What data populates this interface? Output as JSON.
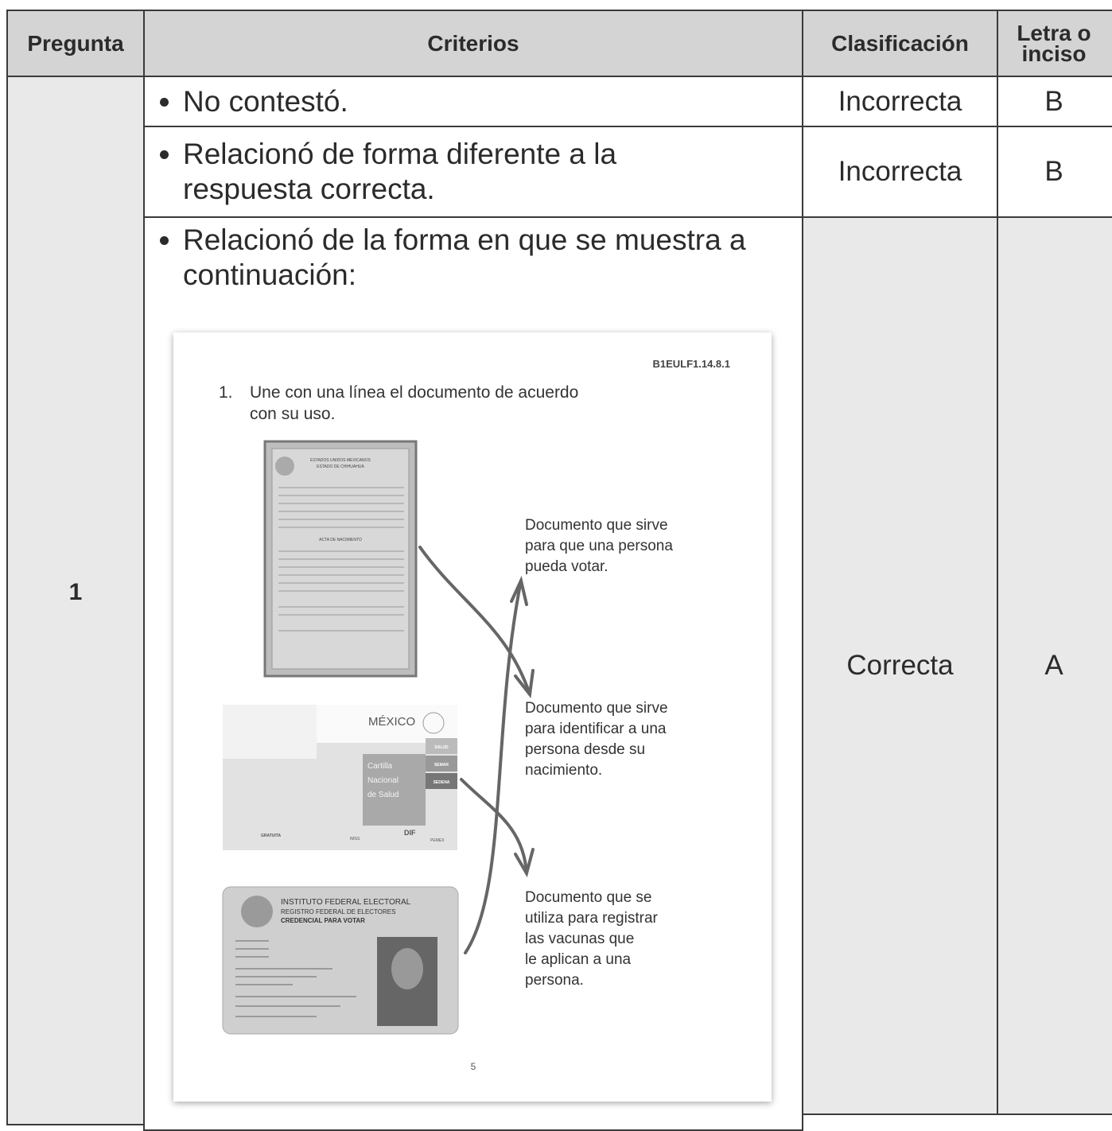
{
  "table": {
    "headers": [
      "Pregunta",
      "Criterios",
      "Clasificación",
      "Letra o inciso"
    ],
    "rows": [
      {
        "pregunta": "1",
        "criterio": "No contestó.",
        "clasificacion": "Incorrecta",
        "letra": "B"
      },
      {
        "criterio": "Relacionó de forma diferente a la respuesta correcta.",
        "clasificacion": "Incorrecta",
        "letra": "B"
      },
      {
        "criterio": "Relacionó de la forma en que se muestra a continuación:",
        "clasificacion": "Correcta",
        "letra": "A"
      }
    ]
  },
  "worksheet": {
    "code": "B1EULF1.14.8.1",
    "number": "1.",
    "question": [
      "Une con una línea el documento de acuerdo",
      "con su uso."
    ],
    "birth_certificate": [
      "ESTADOS UNIDOS MEXICANOS",
      "ESTADO DE CHIHUAHUA",
      "ACTA DE NACIMIENTO"
    ],
    "health_card": {
      "country": "MÉXICO",
      "title": [
        "Cartilla",
        "Nacional",
        "de Salud"
      ],
      "tags": [
        "SALUD",
        "SEMAR",
        "SEDENA"
      ],
      "free": "GRATUITA",
      "logos": [
        "IMSS",
        "DIF",
        "PEMEX"
      ]
    },
    "voter_card": [
      "INSTITUTO FEDERAL ELECTORAL",
      "REGISTRO FEDERAL DE ELECTORES",
      "CREDENCIAL PARA VOTAR"
    ],
    "descriptions": [
      [
        "Documento que sirve",
        "para que una persona",
        "pueda votar."
      ],
      [
        "Documento que sirve",
        "para identificar a una",
        "persona desde su",
        "nacimiento."
      ],
      [
        "Documento que se",
        "utiliza para registrar",
        "las vacunas que",
        "le aplican a una",
        "persona."
      ]
    ],
    "page": "5"
  }
}
